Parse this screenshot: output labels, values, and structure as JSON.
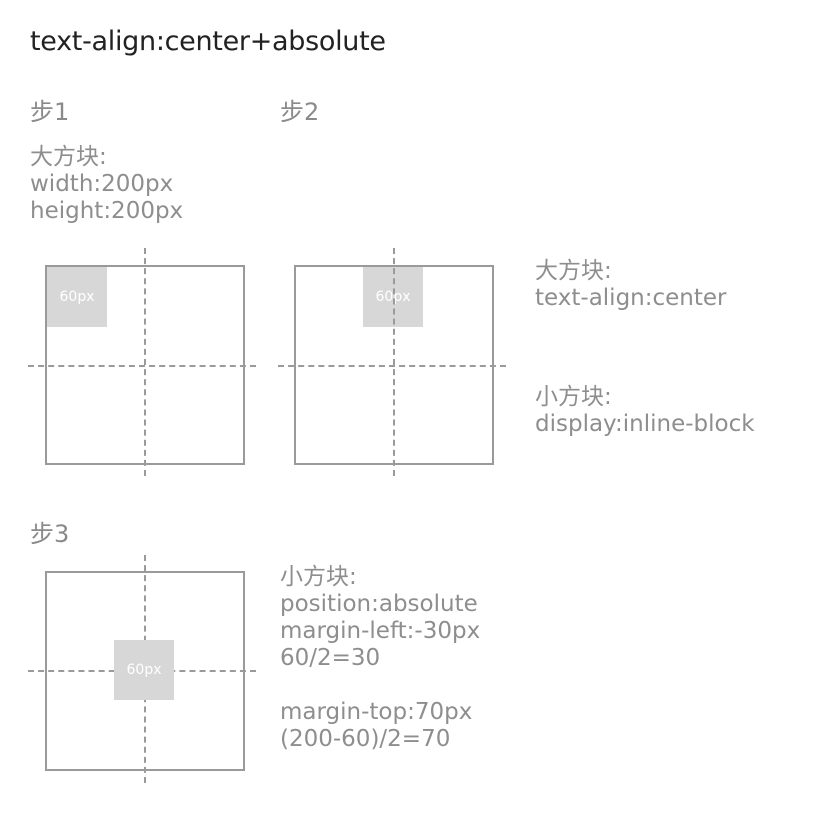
{
  "title": "text-align:center+absolute",
  "colors": {
    "box_border": "#9a9a9a",
    "small_fill": "#d7d7d7",
    "text": "#8a8a8a"
  },
  "step1": {
    "label": "步1",
    "notes": [
      "大方块:",
      "width:200px",
      "height:200px"
    ],
    "small_label": "60px"
  },
  "step2": {
    "label": "步2",
    "small_label": "60px",
    "notes_big": [
      "大方块:",
      "text-align:center"
    ],
    "notes_small": [
      "小方块:",
      "display:inline-block"
    ]
  },
  "step3": {
    "label": "步3",
    "small_label": "60px",
    "notes": [
      "小方块:",
      "position:absolute",
      "margin-left:-30px",
      "60/2=30",
      "",
      "margin-top:70px",
      "(200-60)/2=70"
    ]
  }
}
